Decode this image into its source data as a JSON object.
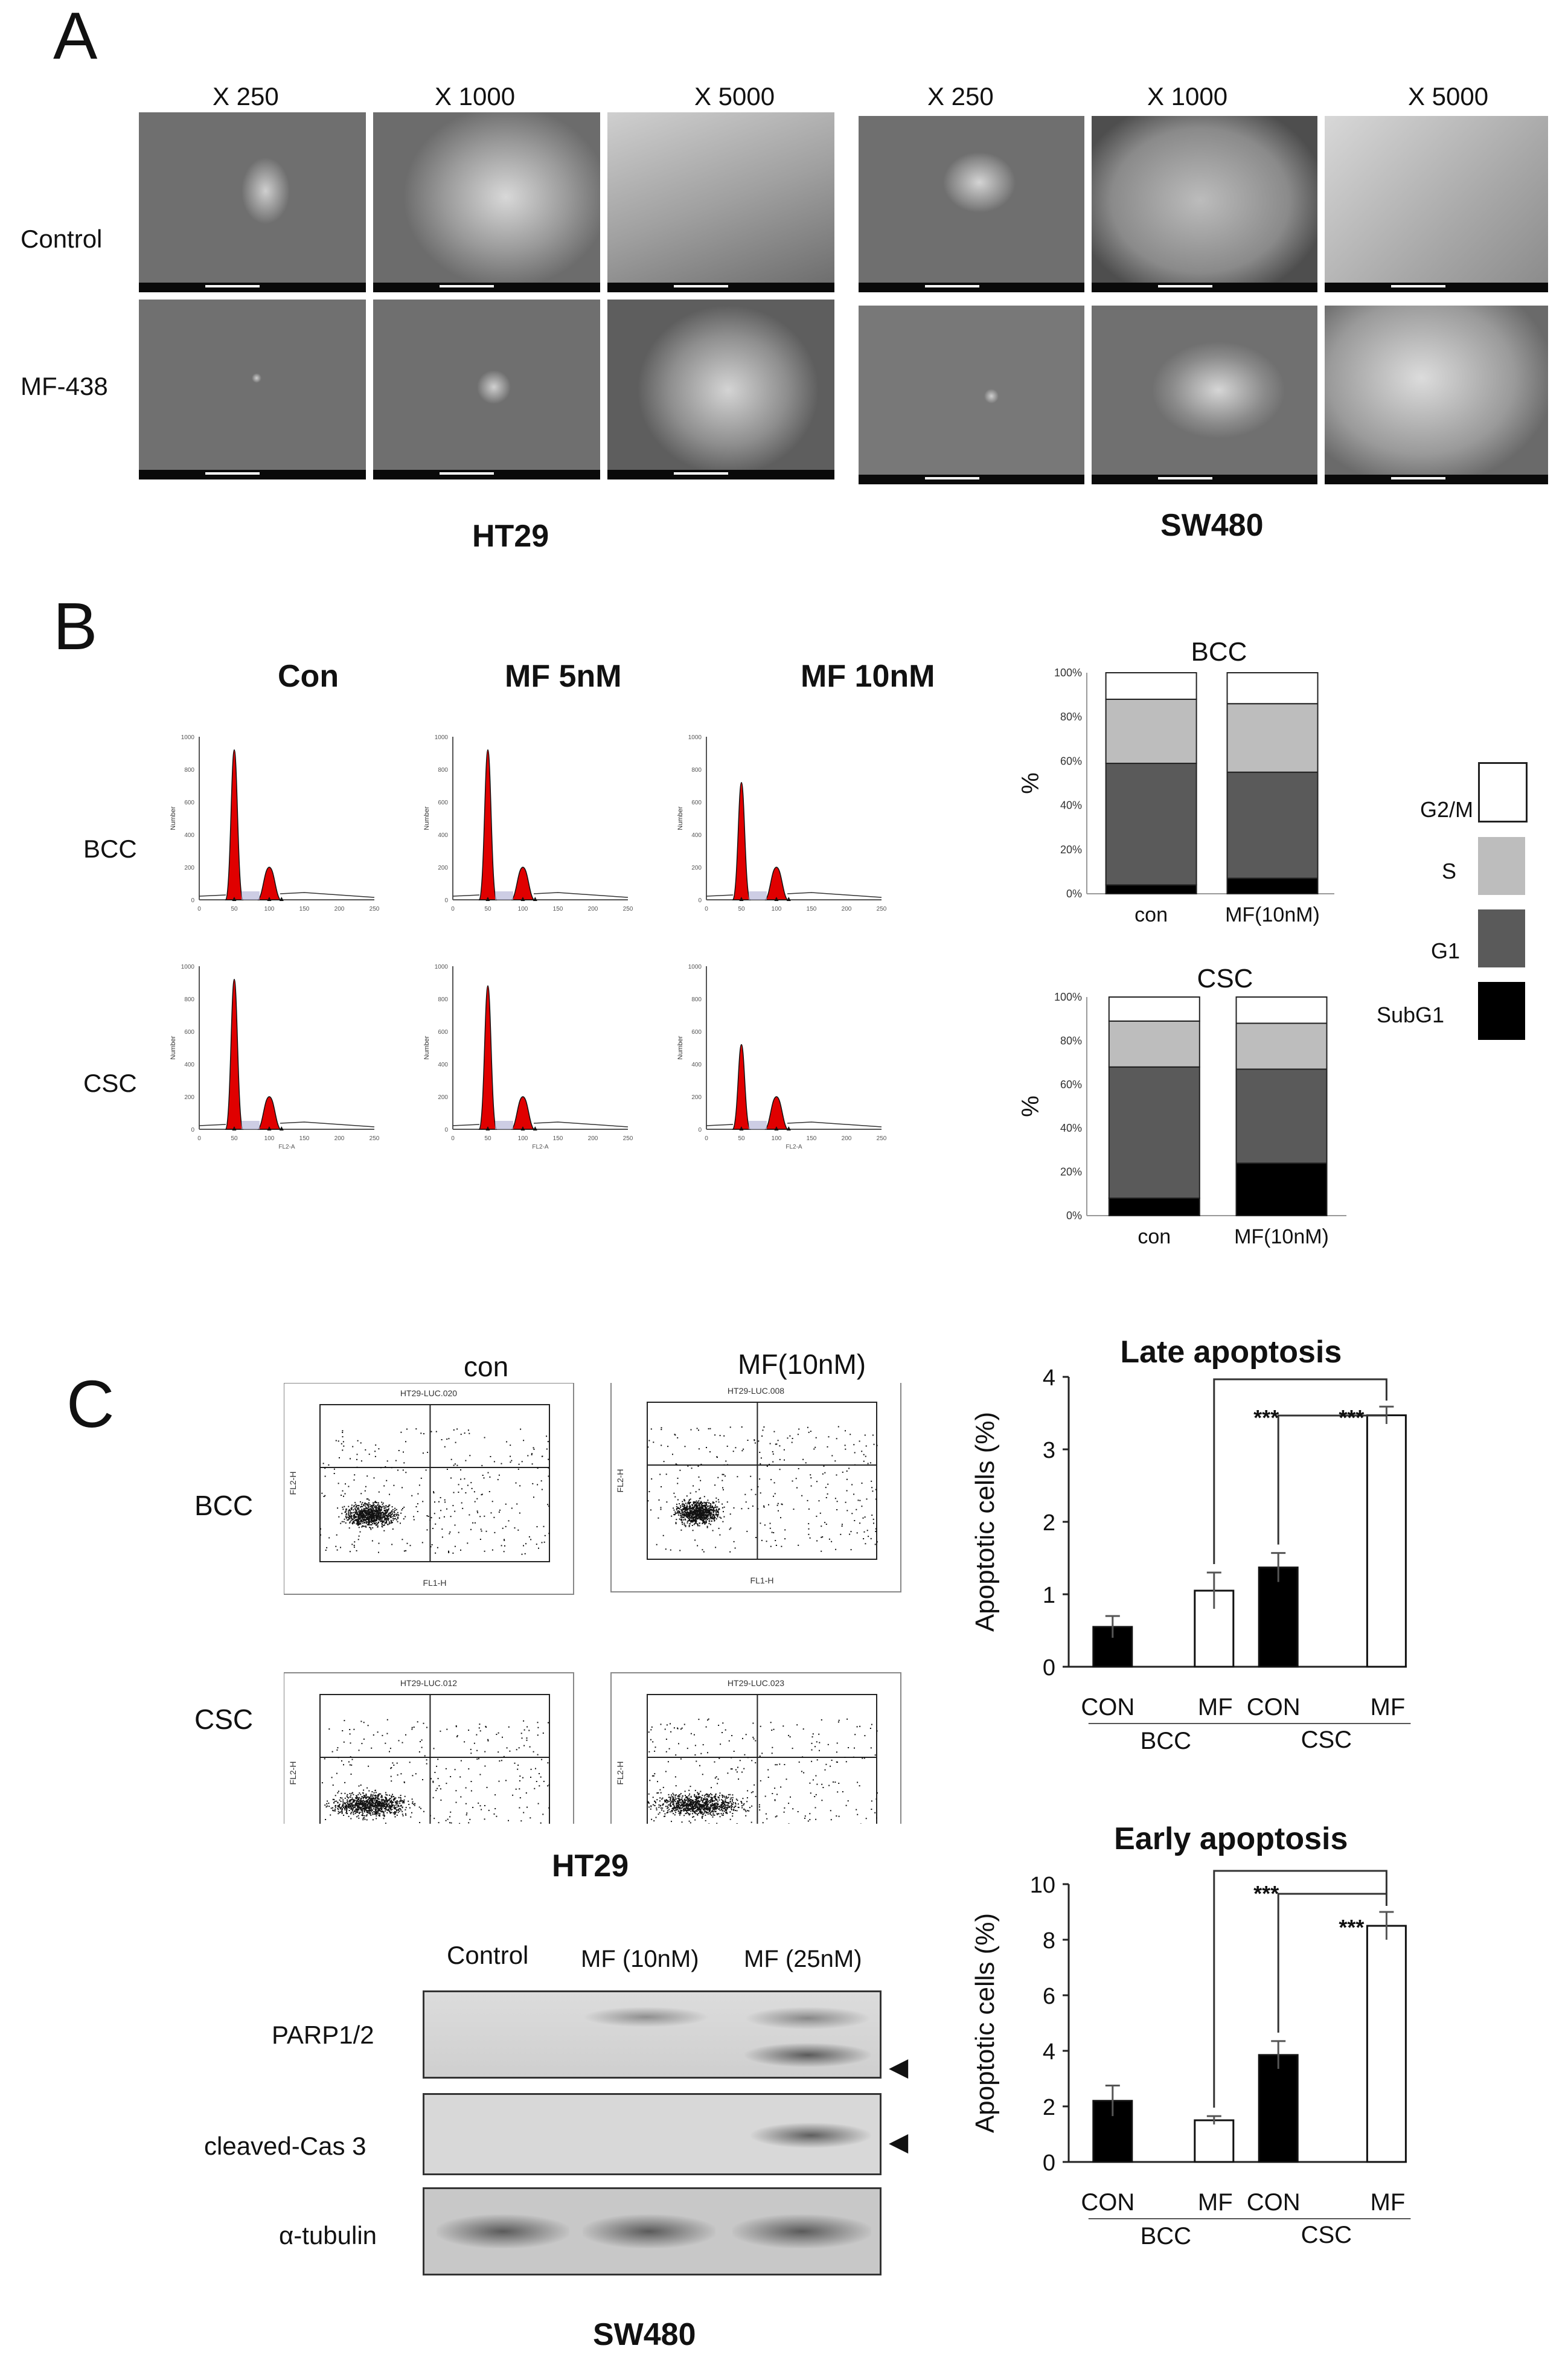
{
  "panelA": {
    "letter": "A",
    "magnifications": [
      "X 250",
      "X 1000",
      "X 5000"
    ],
    "rows": [
      "Control",
      "MF-438"
    ],
    "groups": [
      "HT29",
      "SW480"
    ]
  },
  "panelB": {
    "letter": "B",
    "histogram_conditions": [
      "Con",
      "MF 5nM",
      "MF 10nM"
    ],
    "histogram_rows": [
      "BCC",
      "CSC"
    ],
    "y_axis_label": "Number",
    "x_axis_label": "FL2-A",
    "x_ticks": [
      "0",
      "50",
      "100",
      "150",
      "200",
      "250"
    ],
    "y_ticks": [
      "0",
      "200",
      "400",
      "600",
      "800",
      "1000"
    ],
    "legend": [
      "G2/M",
      "S",
      "G1",
      "SubG1"
    ],
    "legend_colors": [
      "#ffffff",
      "#bdbdbd",
      "#5a5a5a",
      "#000000"
    ]
  },
  "panelC": {
    "letter": "C",
    "flow_columns": [
      "con",
      "MF(10nM)"
    ],
    "flow_rows": [
      "BCC",
      "CSC"
    ],
    "flow_titles": [
      "HT29-LUC.020",
      "HT29-LUC.008",
      "HT29-LUC.012",
      "HT29-LUC.023"
    ],
    "flow_xlabel": "FL1-H",
    "flow_ylabel": "FL2-H",
    "flow_group": "HT29",
    "western": {
      "columns": [
        "Control",
        "MF (10nM)",
        "MF (25nM)"
      ],
      "rows": [
        "PARP1/2",
        "cleaved-Cas 3",
        "α-tubulin"
      ],
      "group": "SW480"
    },
    "sig": "***"
  },
  "chart_data": [
    {
      "type": "bar",
      "stacked": true,
      "title": "BCC",
      "ylabel": "%",
      "categories": [
        "con",
        "MF(10nM)"
      ],
      "ylim": [
        0,
        100
      ],
      "yticks": [
        "0%",
        "20%",
        "40%",
        "60%",
        "80%",
        "100%"
      ],
      "series": [
        {
          "name": "SubG1",
          "values": [
            4,
            7
          ]
        },
        {
          "name": "G1",
          "values": [
            55,
            48
          ]
        },
        {
          "name": "S",
          "values": [
            29,
            31
          ]
        },
        {
          "name": "G2/M",
          "values": [
            12,
            14
          ]
        }
      ]
    },
    {
      "type": "bar",
      "stacked": true,
      "title": "CSC",
      "ylabel": "%",
      "categories": [
        "con",
        "MF(10nM)"
      ],
      "ylim": [
        0,
        100
      ],
      "yticks": [
        "0%",
        "20%",
        "40%",
        "60%",
        "80%",
        "100%"
      ],
      "series": [
        {
          "name": "SubG1",
          "values": [
            8,
            24
          ]
        },
        {
          "name": "G1",
          "values": [
            60,
            43
          ]
        },
        {
          "name": "S",
          "values": [
            21,
            21
          ]
        },
        {
          "name": "G2/M",
          "values": [
            11,
            12
          ]
        }
      ]
    },
    {
      "type": "bar",
      "title": "Late apoptosis",
      "ylabel": "Apoptotic cells (%)",
      "categories": [
        "CON",
        "MF",
        "CON",
        "MF"
      ],
      "groups": [
        "BCC",
        "CSC"
      ],
      "values": [
        0.55,
        1.05,
        1.37,
        3.47
      ],
      "errors": [
        0.15,
        0.25,
        0.2,
        0.12
      ],
      "ylim": [
        0,
        4
      ],
      "yticks": [
        "0",
        "1",
        "2",
        "3",
        "4"
      ]
    },
    {
      "type": "bar",
      "title": "Early apoptosis",
      "ylabel": "Apoptotic cells (%)",
      "categories": [
        "CON",
        "MF",
        "CON",
        "MF"
      ],
      "groups": [
        "BCC",
        "CSC"
      ],
      "values": [
        2.2,
        1.5,
        3.85,
        8.5
      ],
      "errors": [
        0.55,
        0.15,
        0.5,
        0.5
      ],
      "ylim": [
        0,
        10
      ],
      "yticks": [
        "0",
        "2",
        "4",
        "6",
        "8",
        "10"
      ]
    }
  ]
}
